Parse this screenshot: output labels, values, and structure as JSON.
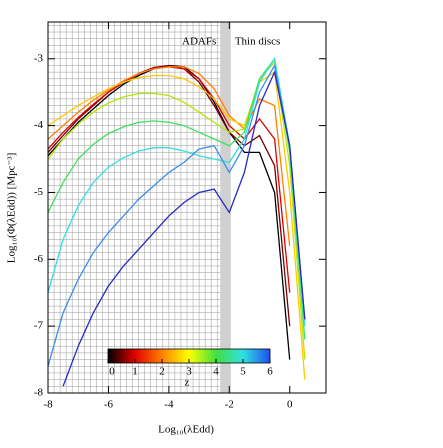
{
  "chart_data": {
    "type": "line",
    "xlabel": "Log₁₀(λEdd)",
    "ylabel": "Log₁₀(Φ(λEdd)) [Mpc⁻³]",
    "annotations": [
      "ADAFs",
      "Thin discs"
    ],
    "x": [
      -8,
      -7.5,
      -7,
      -6.5,
      -6,
      -5.5,
      -5,
      -4.5,
      -4,
      -3.5,
      -3,
      -2.5,
      -2,
      -1.5,
      -1,
      -0.5,
      0,
      0.5
    ],
    "series": [
      {
        "color": "#000000",
        "values": [
          -4.45,
          -4.2,
          -3.95,
          -3.75,
          -3.55,
          -3.38,
          -3.25,
          -3.15,
          -3.1,
          -3.12,
          -3.3,
          -3.65,
          -4.1,
          -4.4,
          -4.4,
          -5.0,
          -7.5,
          null
        ]
      },
      {
        "color": "#7a0000",
        "values": [
          -4.4,
          -4.15,
          -3.9,
          -3.7,
          -3.5,
          -3.35,
          -3.22,
          -3.13,
          -3.1,
          -3.15,
          -3.35,
          -3.7,
          -4.1,
          -4.3,
          -4.15,
          -4.6,
          -7.0,
          null
        ]
      },
      {
        "color": "#e00000",
        "values": [
          -4.35,
          -4.1,
          -3.88,
          -3.68,
          -3.5,
          -3.35,
          -3.22,
          -3.14,
          -3.12,
          -3.15,
          -3.3,
          -3.6,
          -4.0,
          -4.2,
          -3.9,
          -4.2,
          -6.5,
          null
        ]
      },
      {
        "color": "#ff8000",
        "values": [
          -4.2,
          -4.0,
          -3.8,
          -3.62,
          -3.47,
          -3.33,
          -3.22,
          -3.15,
          -3.12,
          -3.12,
          -3.22,
          -3.45,
          -3.85,
          -4.05,
          -3.6,
          -3.7,
          -5.8,
          null
        ]
      },
      {
        "color": "#ffc800",
        "values": [
          -4.0,
          -3.85,
          -3.7,
          -3.57,
          -3.45,
          -3.35,
          -3.28,
          -3.25,
          -3.25,
          -3.3,
          -3.42,
          -3.6,
          -3.9,
          -4.0,
          -3.35,
          -3.2,
          -5.0,
          -7.8
        ]
      },
      {
        "color": "#b4e600",
        "values": [
          -4.5,
          -4.2,
          -3.98,
          -3.8,
          -3.66,
          -3.57,
          -3.52,
          -3.52,
          -3.55,
          -3.65,
          -3.8,
          -3.95,
          -4.1,
          -4.05,
          -3.3,
          -3.05,
          -4.6,
          -7.5
        ]
      },
      {
        "color": "#40e060",
        "values": [
          -5.3,
          -4.85,
          -4.5,
          -4.28,
          -4.12,
          -4.02,
          -3.95,
          -3.93,
          -3.95,
          -4.0,
          -4.1,
          -4.2,
          -4.3,
          -4.1,
          -3.3,
          -3.0,
          -4.4,
          -7.2
        ]
      },
      {
        "color": "#30e0e0",
        "values": [
          -6.5,
          -5.7,
          -5.2,
          -4.85,
          -4.62,
          -4.48,
          -4.38,
          -4.33,
          -4.33,
          -4.38,
          -4.45,
          -4.5,
          -4.55,
          -4.2,
          -3.35,
          -3.0,
          -4.3,
          -7.0
        ]
      },
      {
        "color": "#3c8cf0",
        "values": [
          -7.6,
          -6.8,
          -6.3,
          -5.9,
          -5.6,
          -5.35,
          -5.1,
          -4.9,
          -4.7,
          -4.55,
          -4.35,
          -4.3,
          -4.7,
          -4.3,
          -3.5,
          -3.1,
          -4.3,
          -6.9
        ]
      },
      {
        "color": "#2828c8",
        "values": [
          null,
          -7.9,
          -7.3,
          -6.8,
          -6.4,
          -6.1,
          -5.85,
          -5.6,
          -5.35,
          -5.15,
          -5.0,
          -4.95,
          -5.3,
          -4.7,
          -3.7,
          -3.2,
          -4.3,
          -6.9
        ]
      }
    ],
    "xlim": [
      -8,
      1.2
    ],
    "ylim": [
      -8,
      -2.45
    ],
    "xticks": [
      -8,
      -6,
      -4,
      -2,
      0
    ],
    "yticks": [
      -8,
      -7,
      -6,
      -5,
      -4,
      -3
    ],
    "minor_grid_step": [
      0.2,
      0.1
    ],
    "grid_xmax": -2.3,
    "shaded_band": [
      -2.3,
      -1.95
    ],
    "colorbar": {
      "label": "z",
      "lim": [
        0,
        6
      ],
      "ticks": [
        0,
        1,
        2,
        3,
        4,
        5,
        6
      ],
      "colors": [
        "#000000",
        "#e00000",
        "#ff8000",
        "#ffff00",
        "#40e040",
        "#30e0e0",
        "#2050f0"
      ]
    }
  }
}
